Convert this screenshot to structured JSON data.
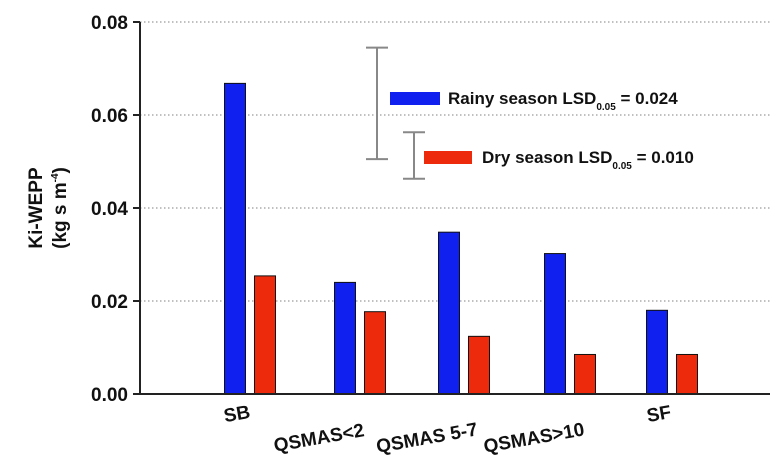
{
  "chart_data": {
    "type": "bar",
    "ylabel_line1": "Ki-WEPP",
    "ylabel_line2_prefix": "(kg s m",
    "ylabel_line2_sup": "-4",
    "ylabel_line2_suffix": ")",
    "ylim": [
      0,
      0.08
    ],
    "yticks": [
      "0.00",
      "0.02",
      "0.04",
      "0.06",
      "0.08"
    ],
    "ytick_values": [
      0,
      0.02,
      0.04,
      0.06,
      0.08
    ],
    "categories": [
      "SB",
      "QSMAS<2",
      "QSMAS 5-7",
      "QSMAS>10",
      "SF"
    ],
    "grid": "horizontal-dotted",
    "series": [
      {
        "name": "Rainy season",
        "color": "#1020ee",
        "values": [
          0.0668,
          0.024,
          0.0348,
          0.0302,
          0.018
        ]
      },
      {
        "name": "Dry season",
        "color": "#ee2a0c",
        "values": [
          0.0254,
          0.0177,
          0.0124,
          0.0085,
          0.0085
        ]
      }
    ],
    "legend": {
      "placement": "top-right",
      "items": [
        {
          "label_prefix": "Rainy season LSD",
          "label_sub": "0.05",
          "label_suffix": " = 0.024",
          "color": "#1020ee"
        },
        {
          "label_prefix": "Dry season LSD",
          "label_sub": "0.05",
          "label_suffix": " = 0.010",
          "color": "#ee2a0c"
        }
      ]
    },
    "lsd_bars": [
      {
        "series": "Rainy season",
        "value": 0.024,
        "center": 0.0625
      },
      {
        "series": "Dry season",
        "value": 0.01,
        "center": 0.0513
      }
    ]
  }
}
